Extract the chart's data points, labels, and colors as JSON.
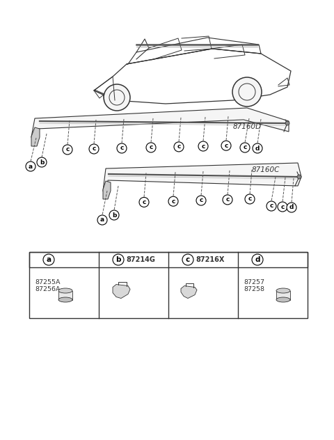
{
  "bg_color": "#ffffff",
  "label_87160D": "87160D",
  "label_87160C": "87160C",
  "part_a_codes": "87255A\n87256A",
  "part_b_code": "87214G",
  "part_c_code": "87216X",
  "part_d_codes": "87257\n87258",
  "circle_labels": [
    "a",
    "b",
    "c",
    "d"
  ],
  "line_color": "#333333",
  "light_gray": "#aaaaaa",
  "dark_gray": "#555555"
}
